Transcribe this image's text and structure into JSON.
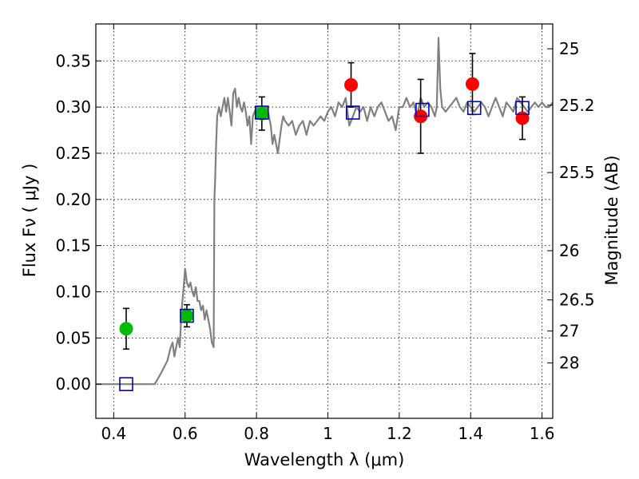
{
  "chart_data": {
    "type": "scatter",
    "xlabel": "Wavelength  λ (μm)",
    "ylabel": "Flux  Fν  ( μJy )",
    "ylabel_right": "Magnitude (AB)",
    "xlim": [
      0.35,
      1.63
    ],
    "ylim": [
      -0.037,
      0.39
    ],
    "grid": true,
    "x_ticks": [
      0.4,
      0.6,
      0.8,
      1.0,
      1.2,
      1.4,
      1.6
    ],
    "x_tick_labels": [
      "0.4",
      "0.6",
      "0.8",
      "1",
      "1.2",
      "1.4",
      "1.6"
    ],
    "y_ticks": [
      0.0,
      0.05,
      0.1,
      0.15,
      0.2,
      0.25,
      0.3,
      0.35
    ],
    "y_tick_labels": [
      "0.00",
      "0.05",
      "0.10",
      "0.15",
      "0.20",
      "0.25",
      "0.30",
      "0.35"
    ],
    "right_ticks": [
      {
        "label": "25",
        "flux": 0.3631
      },
      {
        "label": "25.2",
        "flux": 0.302
      },
      {
        "label": "25.5",
        "flux": 0.2291
      },
      {
        "label": "26",
        "flux": 0.1445
      },
      {
        "label": "26.5",
        "flux": 0.0912
      },
      {
        "label": "27",
        "flux": 0.0575
      },
      {
        "label": "28",
        "flux": 0.0229
      }
    ],
    "series": [
      {
        "name": "model spectrum",
        "kind": "line",
        "color": "#808080",
        "x": [
          0.35,
          0.4,
          0.45,
          0.5,
          0.515,
          0.53,
          0.55,
          0.56,
          0.565,
          0.57,
          0.58,
          0.585,
          0.59,
          0.595,
          0.6,
          0.605,
          0.61,
          0.615,
          0.62,
          0.625,
          0.63,
          0.635,
          0.64,
          0.645,
          0.65,
          0.655,
          0.66,
          0.665,
          0.67,
          0.675,
          0.68,
          0.682,
          0.684,
          0.687,
          0.69,
          0.695,
          0.7,
          0.705,
          0.71,
          0.715,
          0.72,
          0.725,
          0.73,
          0.735,
          0.74,
          0.745,
          0.75,
          0.755,
          0.76,
          0.765,
          0.77,
          0.775,
          0.78,
          0.785,
          0.79,
          0.8,
          0.81,
          0.82,
          0.83,
          0.84,
          0.845,
          0.85,
          0.855,
          0.86,
          0.865,
          0.87,
          0.875,
          0.88,
          0.89,
          0.9,
          0.91,
          0.92,
          0.93,
          0.94,
          0.95,
          0.96,
          0.97,
          0.98,
          0.99,
          1.0,
          1.01,
          1.02,
          1.03,
          1.04,
          1.05,
          1.06,
          1.07,
          1.08,
          1.09,
          1.1,
          1.11,
          1.12,
          1.13,
          1.14,
          1.15,
          1.16,
          1.17,
          1.18,
          1.19,
          1.2,
          1.21,
          1.22,
          1.23,
          1.24,
          1.25,
          1.26,
          1.27,
          1.28,
          1.29,
          1.3,
          1.305,
          1.31,
          1.315,
          1.32,
          1.33,
          1.34,
          1.35,
          1.36,
          1.37,
          1.38,
          1.39,
          1.4,
          1.41,
          1.42,
          1.43,
          1.44,
          1.45,
          1.46,
          1.47,
          1.48,
          1.49,
          1.5,
          1.51,
          1.52,
          1.53,
          1.54,
          1.55,
          1.56,
          1.57,
          1.58,
          1.59,
          1.6,
          1.61,
          1.62,
          1.63
        ],
        "y": [
          0.0,
          0.0,
          0.0,
          0.0,
          0.0,
          0.01,
          0.025,
          0.04,
          0.045,
          0.03,
          0.05,
          0.04,
          0.08,
          0.1,
          0.125,
          0.11,
          0.105,
          0.11,
          0.1,
          0.095,
          0.105,
          0.09,
          0.09,
          0.08,
          0.085,
          0.07,
          0.08,
          0.07,
          0.06,
          0.045,
          0.04,
          0.2,
          0.22,
          0.26,
          0.29,
          0.3,
          0.29,
          0.3,
          0.31,
          0.295,
          0.31,
          0.295,
          0.28,
          0.315,
          0.32,
          0.3,
          0.31,
          0.3,
          0.295,
          0.305,
          0.295,
          0.28,
          0.29,
          0.26,
          0.29,
          0.3,
          0.29,
          0.295,
          0.3,
          0.28,
          0.26,
          0.27,
          0.26,
          0.25,
          0.265,
          0.28,
          0.29,
          0.285,
          0.28,
          0.285,
          0.27,
          0.28,
          0.285,
          0.27,
          0.285,
          0.28,
          0.285,
          0.29,
          0.285,
          0.295,
          0.3,
          0.29,
          0.305,
          0.3,
          0.31,
          0.28,
          0.29,
          0.3,
          0.295,
          0.3,
          0.285,
          0.3,
          0.29,
          0.3,
          0.305,
          0.295,
          0.285,
          0.29,
          0.275,
          0.3,
          0.3,
          0.31,
          0.3,
          0.305,
          0.29,
          0.31,
          0.3,
          0.305,
          0.3,
          0.29,
          0.3,
          0.375,
          0.32,
          0.3,
          0.295,
          0.3,
          0.305,
          0.31,
          0.3,
          0.295,
          0.305,
          0.3,
          0.295,
          0.3,
          0.305,
          0.3,
          0.29,
          0.3,
          0.31,
          0.3,
          0.29,
          0.305,
          0.3,
          0.295,
          0.31,
          0.305,
          0.3,
          0.295,
          0.3,
          0.305,
          0.3,
          0.305,
          0.3,
          0.3,
          0.305
        ]
      },
      {
        "name": "green points",
        "kind": "errorbar",
        "color": "#00bb00",
        "x": [
          0.435,
          0.605,
          0.815
        ],
        "y": [
          0.06,
          0.074,
          0.293
        ],
        "err": [
          0.022,
          0.012,
          0.018
        ]
      },
      {
        "name": "red points",
        "kind": "errorbar",
        "color": "#ff0000",
        "x": [
          1.065,
          1.26,
          1.405,
          1.545
        ],
        "y": [
          0.324,
          0.29,
          0.325,
          0.288
        ],
        "err": [
          0.024,
          0.04,
          0.033,
          0.023
        ]
      },
      {
        "name": "model photometry",
        "kind": "open-square",
        "color": "#0000cc",
        "x": [
          0.435,
          0.605,
          0.815,
          1.07,
          1.265,
          1.41,
          1.545
        ],
        "y": [
          0.0,
          0.074,
          0.294,
          0.294,
          0.297,
          0.299,
          0.299
        ]
      }
    ]
  }
}
